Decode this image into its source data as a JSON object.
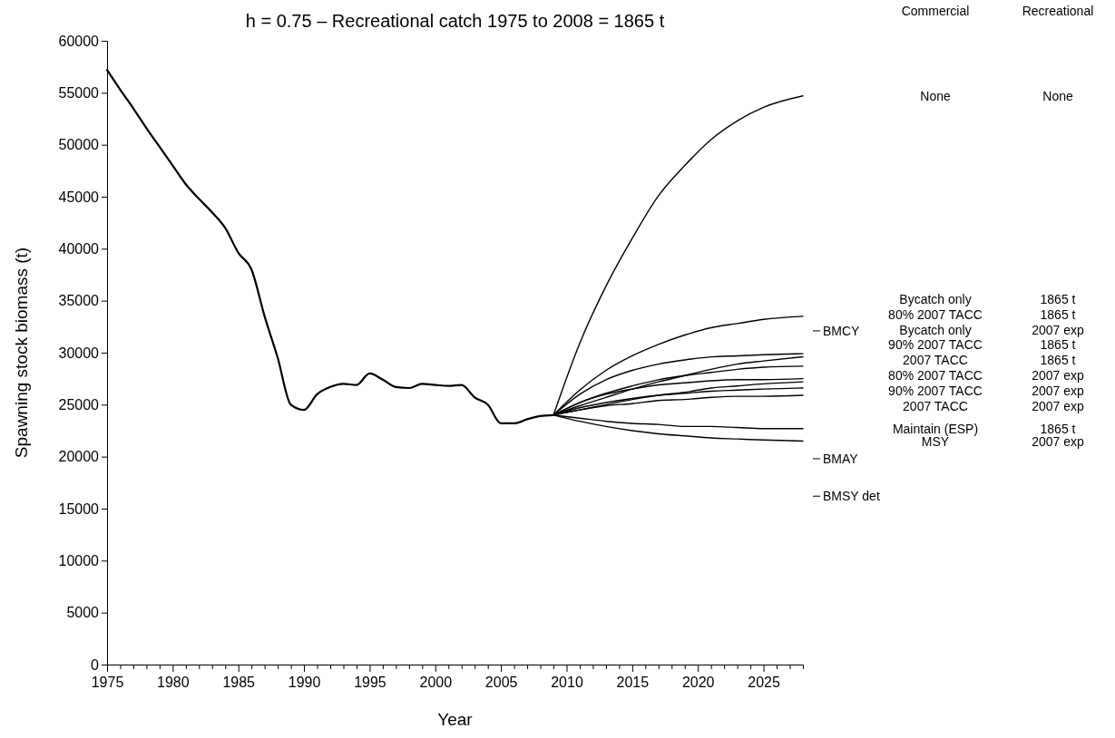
{
  "chart_data": {
    "type": "line",
    "title": "h = 0.75 – Recreational catch 1975 to 2008 = 1865 t",
    "xlabel": "Year",
    "ylabel": "Spawning stock biomass (t)",
    "xlim": [
      1975,
      2028
    ],
    "ylim": [
      0,
      60000
    ],
    "xticks": [
      1975,
      {
        "value": 1976,
        "label": null
      },
      {
        "value": 1977,
        "label": null
      },
      {
        "value": 1978,
        "label": null
      },
      {
        "value": 1979,
        "label": null
      },
      1980,
      {
        "value": 1981,
        "label": null
      },
      {
        "value": 1982,
        "label": null
      },
      {
        "value": 1983,
        "label": null
      },
      {
        "value": 1984,
        "label": null
      },
      1985,
      {
        "value": 1986,
        "label": null
      },
      {
        "value": 1987,
        "label": null
      },
      {
        "value": 1988,
        "label": null
      },
      {
        "value": 1989,
        "label": null
      },
      1990,
      {
        "value": 1991,
        "label": null
      },
      {
        "value": 1992,
        "label": null
      },
      {
        "value": 1993,
        "label": null
      },
      {
        "value": 1994,
        "label": null
      },
      1995,
      {
        "value": 1996,
        "label": null
      },
      {
        "value": 1997,
        "label": null
      },
      {
        "value": 1998,
        "label": null
      },
      {
        "value": 1999,
        "label": null
      },
      2000,
      {
        "value": 2001,
        "label": null
      },
      {
        "value": 2002,
        "label": null
      },
      {
        "value": 2003,
        "label": null
      },
      {
        "value": 2004,
        "label": null
      },
      2005,
      {
        "value": 2006,
        "label": null
      },
      {
        "value": 2007,
        "label": null
      },
      {
        "value": 2008,
        "label": null
      },
      {
        "value": 2009,
        "label": null
      },
      2010,
      {
        "value": 2011,
        "label": null
      },
      {
        "value": 2012,
        "label": null
      },
      {
        "value": 2013,
        "label": null
      },
      {
        "value": 2014,
        "label": null
      },
      2015,
      {
        "value": 2016,
        "label": null
      },
      {
        "value": 2017,
        "label": null
      },
      {
        "value": 2018,
        "label": null
      },
      {
        "value": 2019,
        "label": null
      },
      2020,
      {
        "value": 2021,
        "label": null
      },
      {
        "value": 2022,
        "label": null
      },
      {
        "value": 2023,
        "label": null
      },
      {
        "value": 2024,
        "label": null
      },
      2025,
      {
        "value": 2026,
        "label": null
      },
      {
        "value": 2027,
        "label": null
      },
      {
        "value": 2028,
        "label": null
      }
    ],
    "yticks": [
      0,
      5000,
      10000,
      15000,
      20000,
      25000,
      30000,
      35000,
      40000,
      45000,
      50000,
      55000,
      60000
    ],
    "grid": false,
    "marker": "none",
    "line_style": "solid",
    "series": [
      {
        "color": "#000000",
        "x": [
          1975,
          1976,
          1977,
          1978,
          1979,
          1980,
          1981,
          1982,
          1983,
          1984,
          1985,
          1986,
          1987,
          1988,
          1989,
          1990,
          1991,
          1992,
          1993,
          1994,
          1995,
          1996,
          1997,
          1998,
          1999,
          2000,
          2001,
          2002,
          2003,
          2004,
          2005,
          2006,
          2007,
          2008,
          2009
        ],
        "values": [
          57200,
          55300,
          53500,
          51600,
          49800,
          48000,
          46200,
          44800,
          43500,
          42000,
          39600,
          38000,
          33500,
          29500,
          25000,
          24500,
          26000,
          26700,
          27000,
          26900,
          28000,
          27400,
          26700,
          26600,
          27000,
          26900,
          26800,
          26900,
          25700,
          25000,
          23200,
          23200,
          23600,
          23900,
          24000
        ]
      },
      {
        "name": "None",
        "color": "#000000",
        "x": [
          2009,
          2011,
          2013,
          2015,
          2017,
          2019,
          2021,
          2023,
          2025,
          2028
        ],
        "values": [
          24000,
          30900,
          36400,
          41000,
          45100,
          48000,
          50500,
          52300,
          53600,
          54700
        ]
      },
      {
        "name": "Bycatch only",
        "color": "#000000",
        "x": [
          2009,
          2011,
          2013,
          2015,
          2017,
          2019,
          2021,
          2023,
          2025,
          2028
        ],
        "values": [
          24000,
          26400,
          28300,
          29700,
          30800,
          31700,
          32400,
          32800,
          33200,
          33500
        ]
      },
      {
        "name": "80% 2007 TACC",
        "color": "#000000",
        "x": [
          2009,
          2011,
          2013,
          2015,
          2017,
          2019,
          2021,
          2023,
          2025,
          2028
        ],
        "values": [
          24000,
          26000,
          27400,
          28300,
          28900,
          29300,
          29600,
          29700,
          29800,
          29900
        ]
      },
      {
        "name": "Bycatch only",
        "color": "#000000",
        "x": [
          2009,
          2011,
          2013,
          2015,
          2017,
          2019,
          2021,
          2023,
          2025,
          2028
        ],
        "values": [
          24000,
          24900,
          25700,
          26500,
          27200,
          27800,
          28400,
          28900,
          29200,
          29600
        ]
      },
      {
        "name": "90% 2007 TACC",
        "color": "#000000",
        "x": [
          2009,
          2011,
          2013,
          2015,
          2017,
          2019,
          2021,
          2023,
          2025,
          2028
        ],
        "values": [
          24000,
          25200,
          26100,
          26800,
          27400,
          27800,
          28100,
          28400,
          28600,
          28700
        ]
      },
      {
        "name": "2007 TACC",
        "color": "#000000",
        "x": [
          2009,
          2011,
          2013,
          2015,
          2017,
          2019,
          2021,
          2023,
          2025,
          2028
        ],
        "values": [
          24000,
          25200,
          26000,
          26500,
          26900,
          27100,
          27300,
          27400,
          27400,
          27500
        ]
      },
      {
        "name": "80% 2007 TACC",
        "color": "#000000",
        "x": [
          2009,
          2011,
          2013,
          2015,
          2017,
          2019,
          2021,
          2023,
          2025,
          2028
        ],
        "values": [
          24000,
          24500,
          25000,
          25500,
          25900,
          26200,
          26600,
          26800,
          27000,
          27200
        ]
      },
      {
        "name": "90% 2007 TACC",
        "color": "#000000",
        "x": [
          2009,
          2011,
          2013,
          2015,
          2017,
          2019,
          2021,
          2023,
          2025,
          2028
        ],
        "values": [
          24000,
          24700,
          25200,
          25600,
          25900,
          26100,
          26300,
          26400,
          26500,
          26600
        ]
      },
      {
        "name": "2007 TACC",
        "color": "#000000",
        "x": [
          2009,
          2011,
          2013,
          2015,
          2017,
          2019,
          2021,
          2023,
          2025,
          2028
        ],
        "values": [
          24000,
          24500,
          24900,
          25100,
          25400,
          25500,
          25700,
          25800,
          25800,
          25900
        ]
      },
      {
        "name": "Maintain  (ESP)",
        "color": "#000000",
        "x": [
          2009,
          2011,
          2013,
          2015,
          2017,
          2019,
          2021,
          2023,
          2025,
          2028
        ],
        "values": [
          24000,
          23700,
          23400,
          23200,
          23100,
          22900,
          22900,
          22800,
          22700,
          22700
        ]
      },
      {
        "name": "MSY",
        "color": "#000000",
        "x": [
          2009,
          2011,
          2013,
          2015,
          2017,
          2019,
          2021,
          2023,
          2025,
          2028
        ],
        "values": [
          24000,
          23400,
          22900,
          22500,
          22200,
          22000,
          21800,
          21700,
          21600,
          21500
        ]
      }
    ],
    "ref_lines": [
      {
        "axis": "y",
        "value": 32100,
        "label": "BMCY"
      },
      {
        "axis": "y",
        "value": 19800,
        "label": "BMAY"
      },
      {
        "axis": "y",
        "value": 16200,
        "label": "BMSY det"
      }
    ],
    "annotations": [
      "Commercial",
      "Recreational",
      "None",
      "1865 t",
      "1865 t",
      "2007 exp",
      "1865 t",
      "1865 t",
      "2007 exp",
      "2007 exp",
      "2007 exp",
      "1865 t",
      "2007 exp"
    ]
  }
}
